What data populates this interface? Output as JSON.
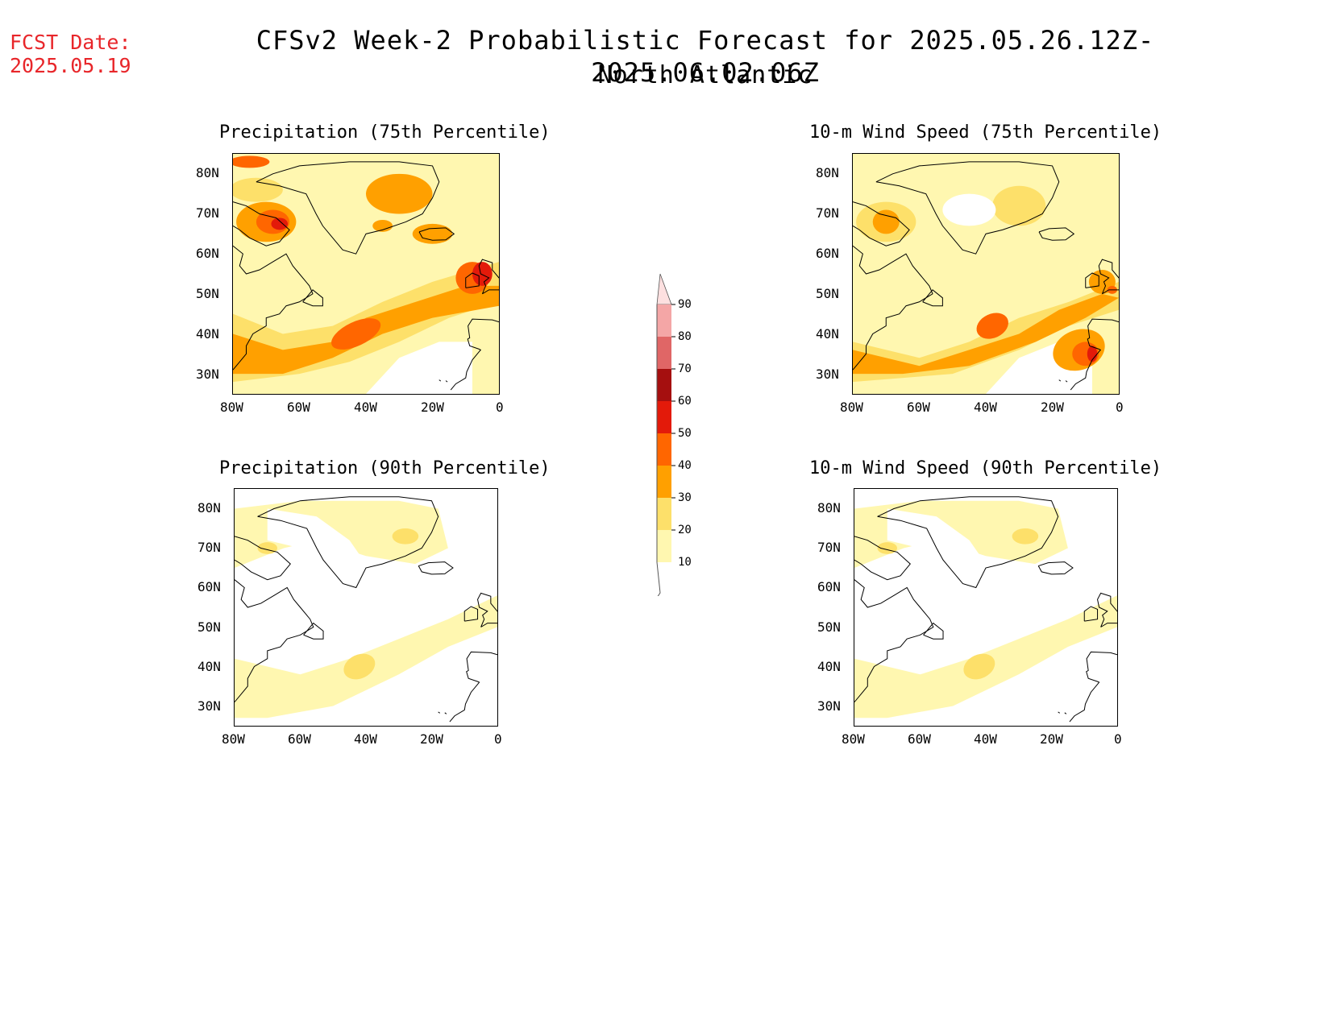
{
  "header": {
    "fcst_label": "FCST Date:",
    "fcst_date": "2025.05.19",
    "title": "CFSv2 Week-2 Probabilistic Forecast for 2025.05.26.12Z-2025.06.02.06Z",
    "subtitle": "North Atlantic"
  },
  "axes": {
    "lat_ticks": [
      "80N",
      "70N",
      "60N",
      "50N",
      "40N",
      "30N"
    ],
    "lon_ticks": [
      "80W",
      "60W",
      "40W",
      "20W",
      "0"
    ],
    "lon_range": [
      -80,
      0
    ],
    "lat_range": [
      25,
      85
    ]
  },
  "panels": [
    {
      "id": "precip-75",
      "title": "Precipitation (75th Percentile)",
      "intensity": "high",
      "variable": "precip"
    },
    {
      "id": "wind-75",
      "title": "10-m Wind Speed (75th Percentile)",
      "intensity": "high",
      "variable": "wind"
    },
    {
      "id": "precip-90",
      "title": "Precipitation (90th Percentile)",
      "intensity": "low",
      "variable": "precip"
    },
    {
      "id": "wind-90",
      "title": "10-m Wind Speed (90th Percentile)",
      "intensity": "low",
      "variable": "wind"
    }
  ],
  "colorbar": {
    "levels": [
      "90",
      "80",
      "70",
      "60",
      "50",
      "40",
      "30",
      "20",
      "10"
    ],
    "colors": [
      "#fde0e0",
      "#f4a6a6",
      "#e06666",
      "#a50f0f",
      "#e31a0a",
      "#ff6600",
      "#ffa000",
      "#fde06a",
      "#fff7b0"
    ]
  }
}
